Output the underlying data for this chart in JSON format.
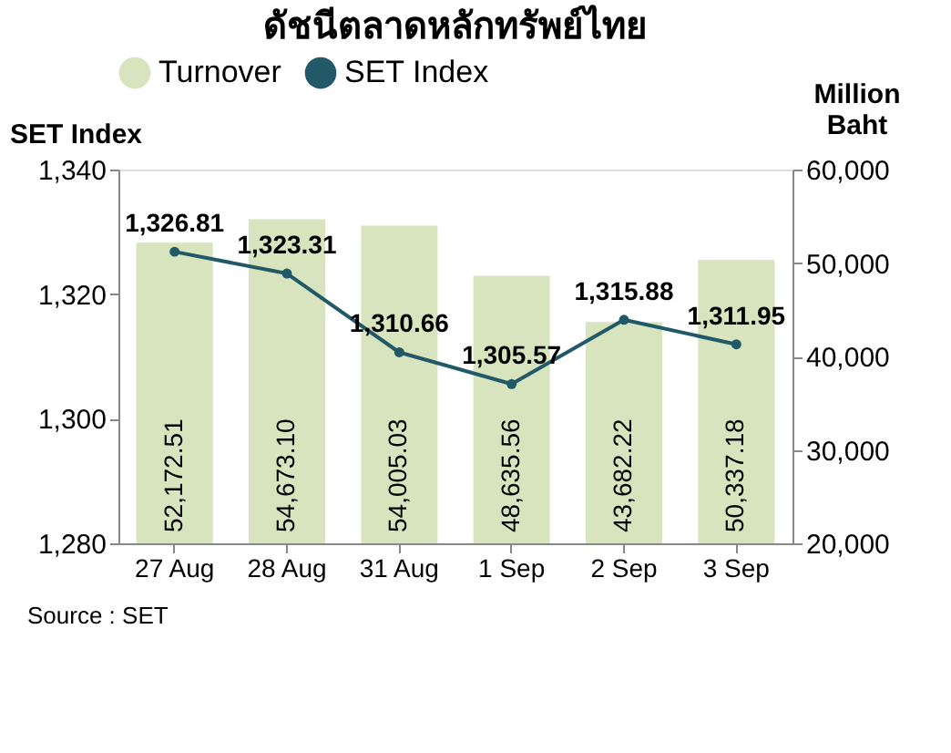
{
  "chart_data": {
    "type": "bar",
    "title": "ดัชนีตลาดหลักทรัพย์ไทย",
    "ylabel": "SET Index",
    "y2label": "Million Baht",
    "categories": [
      "27 Aug",
      "28 Aug",
      "31 Aug",
      "1 Sep",
      "2 Sep",
      "3 Sep"
    ],
    "series": [
      {
        "name": "Turnover",
        "axis": "y2",
        "color": "#d7e4bd",
        "values": [
          52172.51,
          54673.1,
          54005.03,
          48635.56,
          43682.22,
          50337.18
        ],
        "value_labels": [
          "52,172.51",
          "54,673.10",
          "54,005.03",
          "48,635.56",
          "43,682.22",
          "50,337.18"
        ]
      },
      {
        "name": "SET Index",
        "type": "line",
        "axis": "y",
        "color": "#215968",
        "values": [
          1326.81,
          1323.31,
          1310.66,
          1305.57,
          1315.88,
          1311.95
        ],
        "value_labels": [
          "1,326.81",
          "1,323.31",
          "1,310.66",
          "1,305.57",
          "1,315.88",
          "1,311.95"
        ]
      }
    ],
    "ylim": [
      1280,
      1340
    ],
    "yticks": [
      {
        "value": 1280,
        "label": "1,280"
      },
      {
        "value": 1300,
        "label": "1,300"
      },
      {
        "value": 1320,
        "label": "1,320"
      },
      {
        "value": 1340,
        "label": "1,340"
      }
    ],
    "y2lim": [
      20000,
      60000
    ],
    "y2ticks": [
      {
        "value": 20000,
        "label": "20,000"
      },
      {
        "value": 30000,
        "label": "30,000"
      },
      {
        "value": 40000,
        "label": "40,000"
      },
      {
        "value": 50000,
        "label": "50,000"
      },
      {
        "value": 60000,
        "label": "60,000"
      }
    ],
    "legend": "top",
    "marker": "circle",
    "annotations": [
      "Source : SET"
    ]
  }
}
